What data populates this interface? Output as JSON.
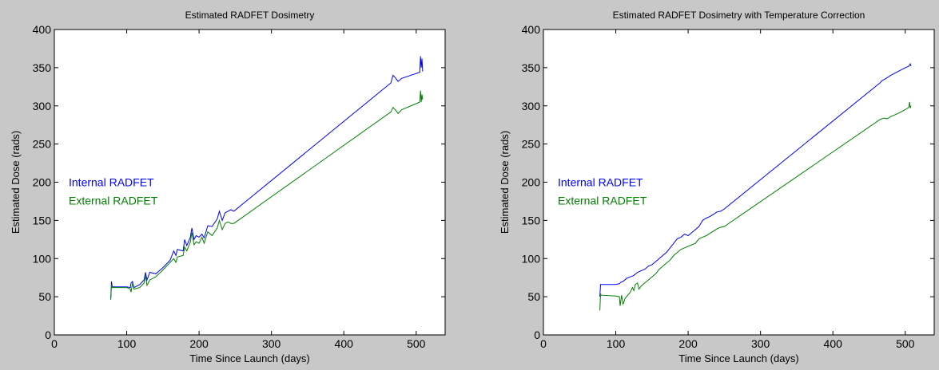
{
  "chart_data": [
    {
      "type": "line",
      "title": "Estimated RADFET Dosimetry",
      "xlabel": "Time Since Launch (days)",
      "ylabel": "Estimated Dose (rads)",
      "xlim": [
        0,
        540
      ],
      "ylim": [
        0,
        400
      ],
      "xticks": [
        0,
        100,
        200,
        300,
        400,
        500
      ],
      "yticks": [
        0,
        50,
        100,
        150,
        200,
        250,
        300,
        350,
        400
      ],
      "legend_placement": "left",
      "series": [
        {
          "name": "Internal RADFET",
          "color": "#0000ff",
          "points": [
            [
              78,
              48
            ],
            [
              79,
              70
            ],
            [
              80,
              63
            ],
            [
              100,
              63
            ],
            [
              105,
              62
            ],
            [
              106,
              68
            ],
            [
              108,
              70
            ],
            [
              110,
              62
            ],
            [
              118,
              66
            ],
            [
              124,
              72
            ],
            [
              126,
              82
            ],
            [
              128,
              72
            ],
            [
              132,
              82
            ],
            [
              140,
              80
            ],
            [
              150,
              88
            ],
            [
              160,
              98
            ],
            [
              165,
              110
            ],
            [
              168,
              104
            ],
            [
              170,
              112
            ],
            [
              178,
              110
            ],
            [
              180,
              125
            ],
            [
              183,
              117
            ],
            [
              188,
              128
            ],
            [
              190,
              140
            ],
            [
              193,
              125
            ],
            [
              196,
              130
            ],
            [
              200,
              128
            ],
            [
              204,
              132
            ],
            [
              207,
              127
            ],
            [
              212,
              143
            ],
            [
              218,
              142
            ],
            [
              225,
              152
            ],
            [
              228,
              162
            ],
            [
              232,
              150
            ],
            [
              236,
              160
            ],
            [
              240,
              162
            ],
            [
              244,
              164
            ],
            [
              248,
              162
            ],
            [
              465,
              330
            ],
            [
              468,
              340
            ],
            [
              472,
              336
            ],
            [
              475,
              332
            ],
            [
              480,
              336
            ],
            [
              505,
              344
            ],
            [
              506,
              365
            ],
            [
              507,
              350
            ],
            [
              508,
              362
            ],
            [
              509,
              345
            ]
          ]
        },
        {
          "name": "External RADFET",
          "color": "#008000",
          "points": [
            [
              78,
              46
            ],
            [
              79,
              65
            ],
            [
              80,
              62
            ],
            [
              100,
              62
            ],
            [
              105,
              60
            ],
            [
              106,
              56
            ],
            [
              108,
              68
            ],
            [
              110,
              60
            ],
            [
              118,
              62
            ],
            [
              124,
              68
            ],
            [
              126,
              78
            ],
            [
              128,
              65
            ],
            [
              132,
              72
            ],
            [
              140,
              76
            ],
            [
              150,
              85
            ],
            [
              160,
              95
            ],
            [
              165,
              100
            ],
            [
              168,
              95
            ],
            [
              170,
              102
            ],
            [
              178,
              104
            ],
            [
              180,
              115
            ],
            [
              183,
              110
            ],
            [
              188,
              122
            ],
            [
              190,
              134
            ],
            [
              193,
              118
            ],
            [
              196,
              122
            ],
            [
              200,
              120
            ],
            [
              204,
              128
            ],
            [
              207,
              120
            ],
            [
              212,
              135
            ],
            [
              218,
              130
            ],
            [
              225,
              140
            ],
            [
              228,
              150
            ],
            [
              232,
              138
            ],
            [
              236,
              146
            ],
            [
              240,
              148
            ],
            [
              244,
              146
            ],
            [
              248,
              146
            ],
            [
              465,
              292
            ],
            [
              468,
              298
            ],
            [
              472,
              294
            ],
            [
              475,
              290
            ],
            [
              480,
              295
            ],
            [
              505,
              305
            ],
            [
              506,
              320
            ],
            [
              507,
              305
            ],
            [
              508,
              315
            ],
            [
              509,
              308
            ]
          ]
        }
      ]
    },
    {
      "type": "line",
      "title": "Estimated RADFET Dosimetry with Temperature Correction",
      "xlabel": "Time Since Launch (days)",
      "ylabel": "Estimated Dose (rads)",
      "xlim": [
        0,
        540
      ],
      "ylim": [
        0,
        400
      ],
      "xticks": [
        0,
        100,
        200,
        300,
        400,
        500
      ],
      "yticks": [
        0,
        50,
        100,
        150,
        200,
        250,
        300,
        350,
        400
      ],
      "legend_placement": "left",
      "series": [
        {
          "name": "Internal RADFET",
          "color": "#0000ff",
          "points": [
            [
              78,
              50
            ],
            [
              79,
              66
            ],
            [
              80,
              66
            ],
            [
              100,
              66
            ],
            [
              105,
              67
            ],
            [
              107,
              69
            ],
            [
              110,
              70
            ],
            [
              115,
              74
            ],
            [
              120,
              76
            ],
            [
              125,
              78
            ],
            [
              130,
              82
            ],
            [
              135,
              84
            ],
            [
              140,
              86
            ],
            [
              145,
              90
            ],
            [
              150,
              92
            ],
            [
              155,
              96
            ],
            [
              160,
              100
            ],
            [
              165,
              104
            ],
            [
              170,
              108
            ],
            [
              175,
              114
            ],
            [
              180,
              120
            ],
            [
              185,
              126
            ],
            [
              190,
              128
            ],
            [
              195,
              132
            ],
            [
              200,
              130
            ],
            [
              205,
              134
            ],
            [
              210,
              138
            ],
            [
              215,
              142
            ],
            [
              220,
              150
            ],
            [
              225,
              153
            ],
            [
              230,
              155
            ],
            [
              235,
              158
            ],
            [
              240,
              161
            ],
            [
              245,
              162
            ],
            [
              250,
              165
            ],
            [
              465,
              330
            ],
            [
              468,
              333
            ],
            [
              472,
              335
            ],
            [
              480,
              340
            ],
            [
              490,
              345
            ],
            [
              500,
              350
            ],
            [
              505,
              352
            ],
            [
              507,
              355
            ],
            [
              508,
              352
            ]
          ]
        },
        {
          "name": "External RADFET",
          "color": "#008000",
          "points": [
            [
              78,
              32
            ],
            [
              79,
              54
            ],
            [
              80,
              52
            ],
            [
              100,
              51
            ],
            [
              105,
              50
            ],
            [
              106,
              38
            ],
            [
              108,
              52
            ],
            [
              110,
              40
            ],
            [
              113,
              48
            ],
            [
              120,
              56
            ],
            [
              123,
              62
            ],
            [
              125,
              58
            ],
            [
              127,
              66
            ],
            [
              130,
              68
            ],
            [
              132,
              60
            ],
            [
              135,
              64
            ],
            [
              140,
              68
            ],
            [
              145,
              72
            ],
            [
              150,
              76
            ],
            [
              155,
              80
            ],
            [
              160,
              86
            ],
            [
              165,
              90
            ],
            [
              170,
              94
            ],
            [
              175,
              98
            ],
            [
              180,
              104
            ],
            [
              185,
              108
            ],
            [
              190,
              112
            ],
            [
              195,
              114
            ],
            [
              200,
              116
            ],
            [
              205,
              118
            ],
            [
              210,
              120
            ],
            [
              215,
              126
            ],
            [
              220,
              128
            ],
            [
              225,
              130
            ],
            [
              230,
              133
            ],
            [
              235,
              136
            ],
            [
              240,
              139
            ],
            [
              245,
              141
            ],
            [
              250,
              142
            ],
            [
              465,
              282
            ],
            [
              470,
              284
            ],
            [
              475,
              283
            ],
            [
              480,
              286
            ],
            [
              490,
              290
            ],
            [
              500,
              295
            ],
            [
              505,
              298
            ],
            [
              506,
              305
            ],
            [
              507,
              297
            ],
            [
              508,
              300
            ]
          ]
        }
      ]
    }
  ]
}
